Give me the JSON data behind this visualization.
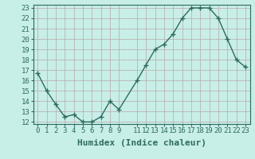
{
  "x": [
    0,
    1,
    2,
    3,
    4,
    5,
    6,
    7,
    8,
    9,
    11,
    12,
    13,
    14,
    15,
    16,
    17,
    18,
    19,
    20,
    21,
    22,
    23
  ],
  "y": [
    16.7,
    15.0,
    13.7,
    12.5,
    12.7,
    12.0,
    12.0,
    12.5,
    14.0,
    13.2,
    16.0,
    17.5,
    19.0,
    19.5,
    20.5,
    22.0,
    23.0,
    23.0,
    23.0,
    22.0,
    20.0,
    18.0,
    17.3
  ],
  "xlabel": "Humidex (Indice chaleur)",
  "ylim": [
    12,
    23
  ],
  "xlim": [
    -0.5,
    23.5
  ],
  "yticks": [
    12,
    13,
    14,
    15,
    16,
    17,
    18,
    19,
    20,
    21,
    22,
    23
  ],
  "xticks": [
    0,
    1,
    2,
    3,
    4,
    5,
    6,
    7,
    8,
    9,
    11,
    12,
    13,
    14,
    15,
    16,
    17,
    18,
    19,
    20,
    21,
    22,
    23
  ],
  "xtick_labels": [
    "0",
    "1",
    "2",
    "3",
    "4",
    "5",
    "6",
    "7",
    "8",
    "9",
    "11",
    "12",
    "13",
    "14",
    "15",
    "16",
    "17",
    "18",
    "19",
    "20",
    "21",
    "22",
    "23"
  ],
  "line_color": "#2d6b5e",
  "marker": "+",
  "marker_size": 4,
  "bg_color": "#c8eee8",
  "grid_color": "#b8a8a8",
  "xlabel_fontsize": 8,
  "tick_fontsize": 6.5,
  "line_width": 1.0
}
